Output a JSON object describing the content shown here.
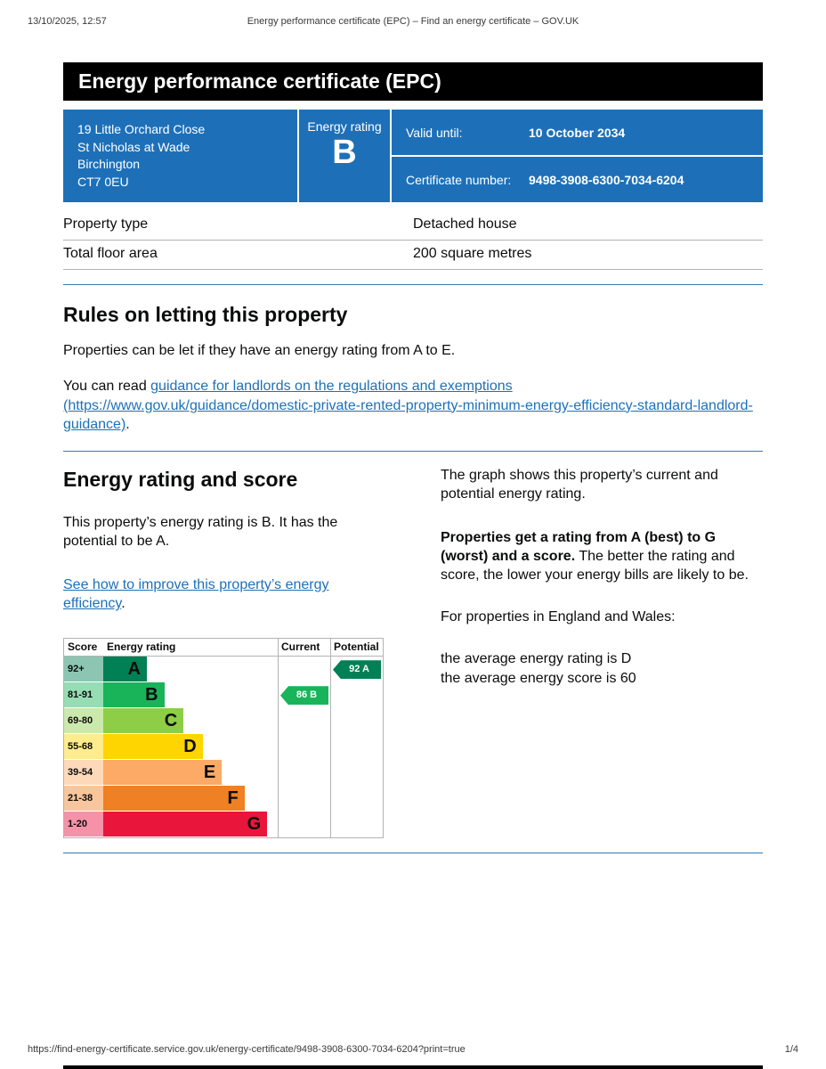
{
  "print_header": {
    "datetime": "13/10/2025, 12:57",
    "doc_title": "Energy performance certificate (EPC) – Find an energy certificate – GOV.UK"
  },
  "banner_title": "Energy performance certificate (EPC)",
  "summary": {
    "address_lines": [
      "19 Little Orchard Close",
      "St Nicholas at Wade",
      "Birchington",
      "CT7 0EU"
    ],
    "rating_label": "Energy rating",
    "rating_letter": "B",
    "valid_until_label": "Valid until:",
    "valid_until_value": "10 October 2034",
    "cert_number_label": "Certificate number:",
    "cert_number_value": "9498-3908-6300-7034-6204"
  },
  "property_table": {
    "rows": [
      {
        "label": "Property type",
        "value": "Detached house"
      },
      {
        "label": "Total floor area",
        "value": "200 square metres"
      }
    ]
  },
  "rules": {
    "heading": "Rules on letting this property",
    "para1": "Properties can be let if they have an energy rating from A to E.",
    "para2_prefix": "You can read ",
    "para2_link": "guidance for landlords on the regulations and exemptions (https://www.gov.uk/guidance/domestic-private-rented-property-minimum-energy-efficiency-standard-landlord-guidance)",
    "para2_suffix": "."
  },
  "rating_section": {
    "heading": "Energy rating and score",
    "para1": "This property’s energy rating is B. It has the potential to be A.",
    "improve_link": "See how to improve this property’s energy efficiency",
    "improve_suffix": ".",
    "graph_para1": "The graph shows this property’s current and potential energy rating.",
    "graph_para2_bold": "Properties get a rating from A (best) to G (worst) and a score.",
    "graph_para2_rest": " The better the rating and score, the lower your energy bills are likely to be.",
    "graph_para3": "For properties in England and Wales:",
    "avg_rating_line": "the average energy rating is D",
    "avg_score_line": "the average energy score is 60"
  },
  "chart_data": {
    "type": "epc-rating-bands",
    "title": "Energy rating and score",
    "columns": [
      "Score",
      "Energy rating",
      "Current",
      "Potential"
    ],
    "bands": [
      {
        "score": "92+",
        "letter": "A",
        "color": "#008054",
        "score_bg": "#8cc6b2",
        "width_pct": 25
      },
      {
        "score": "81-91",
        "letter": "B",
        "color": "#19b459",
        "score_bg": "#97ddb4",
        "width_pct": 35
      },
      {
        "score": "69-80",
        "letter": "C",
        "color": "#8dce46",
        "score_bg": "#cbe9ac",
        "width_pct": 46
      },
      {
        "score": "55-68",
        "letter": "D",
        "color": "#ffd500",
        "score_bg": "#ffec8c",
        "width_pct": 57
      },
      {
        "score": "39-54",
        "letter": "E",
        "color": "#fcaa65",
        "score_bg": "#fdd9ba",
        "width_pct": 68
      },
      {
        "score": "21-38",
        "letter": "F",
        "color": "#ef8023",
        "score_bg": "#f8c69c",
        "width_pct": 81
      },
      {
        "score": "1-20",
        "letter": "G",
        "color": "#e9153b",
        "score_bg": "#f592a7",
        "width_pct": 94
      }
    ],
    "current": {
      "label": "86 B",
      "score": 86,
      "letter": "B",
      "band_index": 1,
      "color": "#19b459"
    },
    "potential": {
      "label": "92 A",
      "score": 92,
      "letter": "A",
      "band_index": 0,
      "color": "#008054"
    }
  },
  "footer": {
    "url": "https://find-energy-certificate.service.gov.uk/energy-certificate/9498-3908-6300-7034-6204?print=true",
    "page_indicator": "1/4"
  }
}
